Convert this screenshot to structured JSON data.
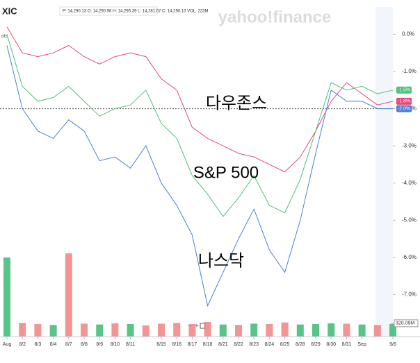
{
  "chart_data": {
    "type": "line",
    "symbol": "XIC",
    "quote": "P: 14,290.13 O: 14,290.96 H: 14,295.39 L: 14,281.07 C: 14,290.13 VOL: 223M",
    "watermark": "yahoo!finance",
    "side_label": "ots",
    "categories": [
      "Aug",
      "8/2",
      "8/3",
      "8/4",
      "8/7",
      "8/8",
      "8/9",
      "8/10",
      "8/11",
      null,
      "8/15",
      "8/16",
      "8/17",
      "8/18",
      "8/21",
      "8/22",
      "8/23",
      "8/24",
      "8/25",
      "8/28",
      "8/29",
      "8/30",
      "8/31",
      "Sep",
      null,
      "9/6"
    ],
    "series": [
      {
        "name": "다우존스",
        "color": "#e8457a",
        "end_label": "-1.8%",
        "values": [
          0.2,
          -0.5,
          -0.6,
          -0.5,
          -0.3,
          -0.6,
          -0.8,
          -0.6,
          -0.5,
          -0.6,
          -1.2,
          -1.5,
          -2.5,
          -2.8,
          -3.0,
          -3.2,
          -3.3,
          -3.5,
          -3.7,
          -3.3,
          -2.6,
          -1.8,
          -1.3,
          -1.6,
          -1.9,
          -1.8
        ]
      },
      {
        "name": "S&P 500",
        "color": "#4fc07a",
        "end_label": "-1.5%",
        "values": [
          0.0,
          -1.4,
          -1.8,
          -1.7,
          -1.4,
          -1.8,
          -2.2,
          -2.0,
          -1.9,
          -1.5,
          -2.4,
          -2.8,
          -3.8,
          -4.3,
          -4.9,
          -4.4,
          -3.8,
          -4.6,
          -4.8,
          -3.9,
          -2.6,
          -1.3,
          -1.5,
          -1.4,
          -1.6,
          -1.5
        ]
      },
      {
        "name": "나스닥",
        "color": "#4a7fd4",
        "end_label": "-2.0%",
        "values": [
          -0.3,
          -2.0,
          -2.6,
          -2.8,
          -2.3,
          -2.6,
          -3.4,
          -3.3,
          -3.6,
          -3.0,
          -4.0,
          -4.6,
          -5.4,
          -7.3,
          -6.4,
          -5.5,
          -4.7,
          -5.8,
          -6.4,
          -5.0,
          -3.2,
          -1.5,
          -1.8,
          -1.8,
          -2.0,
          -2.0
        ]
      }
    ],
    "ylim": [
      -8,
      0.4
    ],
    "yticks": [
      {
        "value": 0,
        "label": "0.0%"
      },
      {
        "value": -1,
        "label": "-1.0%"
      },
      {
        "value": -2,
        "label": "-2.0%"
      },
      {
        "value": -3,
        "label": "-3.0%"
      },
      {
        "value": -4,
        "label": "-4.0%"
      },
      {
        "value": -5,
        "label": "-5.0%"
      },
      {
        "value": -6,
        "label": "-6.0%"
      },
      {
        "value": -7,
        "label": "-7.0%"
      }
    ],
    "reference": -2,
    "volume": {
      "values": [
        1900,
        330,
        300,
        280,
        2000,
        310,
        290,
        320,
        300,
        270,
        310,
        330,
        300,
        350,
        290,
        280,
        310,
        300,
        340,
        290,
        300,
        320,
        310,
        290,
        280,
        300
      ],
      "colors": [
        "#2fb56a",
        "#f07a7a",
        "#f07a7a",
        "#2fb56a",
        "#f07a7a",
        "#f07a7a",
        "#2fb56a",
        "#f07a7a",
        "#2fb56a",
        "#f07a7a",
        "#f07a7a",
        "#f07a7a",
        "#f07a7a",
        "#f07a7a",
        "#2fb56a",
        "#f07a7a",
        "#2fb56a",
        "#f07a7a",
        "#f07a7a",
        "#2fb56a",
        "#2fb56a",
        "#2fb56a",
        "#f07a7a",
        "#2fb56a",
        "#f07a7a",
        "#2fb56a"
      ],
      "vlim": [
        0,
        2000
      ],
      "tick": {
        "value": 320.09,
        "label": "320.09M"
      }
    }
  }
}
